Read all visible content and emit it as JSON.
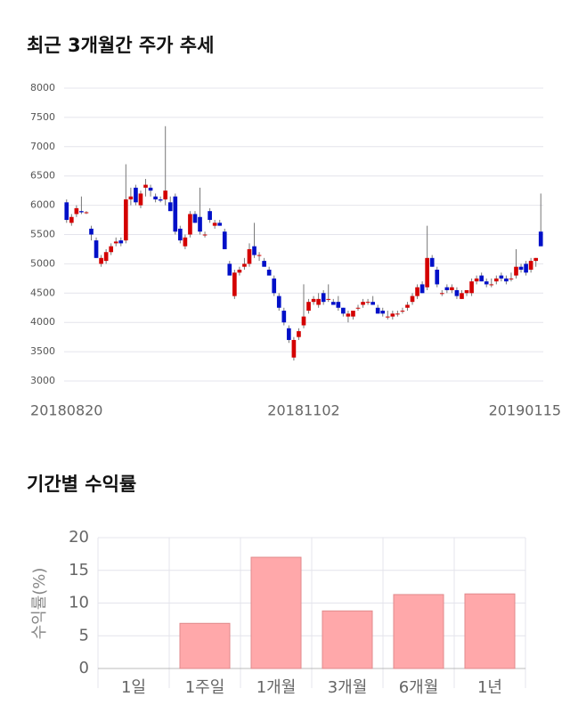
{
  "chart_data": [
    {
      "type": "candlestick",
      "title": "최근 3개월간 주가 추세",
      "up_color": "#d40000",
      "down_color": "#0010c8",
      "grid": true,
      "ylim": [
        3000,
        8000
      ],
      "yticks": [
        3000,
        3500,
        4000,
        4500,
        5000,
        5500,
        6000,
        6500,
        7000,
        7500,
        8000
      ],
      "categories": [
        "20180820",
        null,
        null,
        null,
        null,
        null,
        null,
        null,
        null,
        null,
        null,
        null,
        null,
        null,
        null,
        null,
        null,
        null,
        null,
        null,
        null,
        null,
        null,
        null,
        null,
        null,
        null,
        null,
        null,
        null,
        null,
        null,
        null,
        null,
        null,
        null,
        null,
        null,
        null,
        null,
        null,
        null,
        null,
        null,
        null,
        null,
        null,
        null,
        "20181102",
        null,
        null,
        null,
        null,
        null,
        null,
        null,
        null,
        null,
        null,
        null,
        null,
        null,
        null,
        null,
        null,
        null,
        null,
        null,
        null,
        null,
        null,
        null,
        null,
        null,
        null,
        null,
        null,
        null,
        null,
        null,
        null,
        null,
        null,
        null,
        null,
        null,
        null,
        null,
        null,
        null,
        null,
        null,
        null,
        null,
        null,
        null,
        "20190115"
      ],
      "open": [
        6050,
        5700,
        5850,
        5900,
        5880,
        5600,
        5400,
        5000,
        5050,
        5200,
        5350,
        5400,
        5400,
        6100,
        6300,
        6000,
        6300,
        6300,
        6150,
        6100,
        6100,
        6050,
        6150,
        5600,
        5300,
        5500,
        5850,
        5800,
        5500,
        5900,
        5650,
        5700,
        5550,
        5000,
        4450,
        4850,
        4950,
        5000,
        5300,
        5150,
        5050,
        4900,
        4750,
        4450,
        4200,
        3900,
        3400,
        3750,
        3950,
        4200,
        4350,
        4300,
        4500,
        4400,
        4350,
        4350,
        4250,
        4100,
        4100,
        4250,
        4300,
        4350,
        4350,
        4250,
        4200,
        4100,
        4100,
        4150,
        4200,
        4250,
        4350,
        4450,
        4650,
        4600,
        5100,
        4900,
        4500,
        4600,
        4550,
        4550,
        4400,
        4500,
        4500,
        4700,
        4800,
        4700,
        4650,
        4700,
        4800,
        4750,
        4750,
        4800,
        4950,
        5000,
        4900,
        5050,
        5550
      ],
      "high": [
        6100,
        5850,
        6000,
        6150,
        5900,
        5650,
        5450,
        5150,
        5250,
        5350,
        5450,
        5450,
        6700,
        6300,
        6350,
        6250,
        6450,
        6350,
        6200,
        6150,
        7350,
        6150,
        6200,
        5650,
        5500,
        5900,
        5900,
        6300,
        5550,
        5950,
        5750,
        5750,
        5600,
        5050,
        4900,
        4950,
        5100,
        5350,
        5700,
        5200,
        5100,
        4950,
        4800,
        4500,
        4250,
        3950,
        3750,
        3900,
        4650,
        4400,
        4450,
        4500,
        4550,
        4650,
        4400,
        4450,
        4250,
        4200,
        4200,
        4300,
        4400,
        4400,
        4450,
        4300,
        4250,
        4200,
        4200,
        4200,
        4250,
        4350,
        4500,
        4650,
        4700,
        5650,
        5150,
        4950,
        4550,
        4650,
        4650,
        4600,
        4550,
        4550,
        4750,
        4800,
        4850,
        4750,
        4750,
        4800,
        4850,
        4800,
        4850,
        5250,
        5000,
        5050,
        5100,
        5100,
        6200
      ],
      "low": [
        5700,
        5650,
        5800,
        5850,
        5850,
        5400,
        5100,
        4950,
        5000,
        5150,
        5300,
        5300,
        5350,
        6000,
        6000,
        5950,
        6150,
        6150,
        6050,
        6050,
        6000,
        5900,
        5500,
        5350,
        5250,
        5450,
        5700,
        5500,
        5450,
        5700,
        5600,
        5650,
        5250,
        4800,
        4400,
        4800,
        4900,
        4950,
        5100,
        5050,
        4950,
        4800,
        4450,
        4200,
        3950,
        3650,
        3350,
        3700,
        3900,
        4150,
        4300,
        4250,
        4300,
        4350,
        4300,
        4200,
        4100,
        4000,
        4050,
        4200,
        4250,
        4300,
        4300,
        4150,
        4100,
        4050,
        4050,
        4100,
        4150,
        4200,
        4300,
        4400,
        4500,
        4550,
        4950,
        4600,
        4450,
        4500,
        4500,
        4400,
        4400,
        4450,
        4450,
        4650,
        4700,
        4600,
        4600,
        4650,
        4700,
        4650,
        4700,
        4750,
        4850,
        4800,
        4850,
        4950,
        5300
      ],
      "close": [
        5750,
        5800,
        5950,
        5880,
        5880,
        5500,
        5100,
        5100,
        5200,
        5300,
        5380,
        5350,
        6100,
        6150,
        6050,
        6200,
        6350,
        6250,
        6100,
        6080,
        6250,
        5900,
        5550,
        5400,
        5450,
        5850,
        5700,
        5550,
        5500,
        5750,
        5700,
        5650,
        5250,
        4800,
        4850,
        4900,
        5000,
        5250,
        5150,
        5150,
        4950,
        4800,
        4500,
        4250,
        4000,
        3700,
        3700,
        3850,
        4100,
        4350,
        4400,
        4400,
        4350,
        4400,
        4300,
        4250,
        4150,
        4150,
        4200,
        4250,
        4350,
        4350,
        4300,
        4150,
        4150,
        4100,
        4150,
        4150,
        4200,
        4300,
        4450,
        4600,
        4500,
        5100,
        4950,
        4650,
        4500,
        4550,
        4600,
        4450,
        4500,
        4550,
        4700,
        4750,
        4700,
        4650,
        4650,
        4750,
        4750,
        4700,
        4750,
        4950,
        4900,
        4850,
        5050,
        5100,
        5300
      ]
    },
    {
      "type": "bar",
      "title": "기간별 수익률",
      "ylabel": "수익률(%)",
      "color": "#ffa8aa",
      "edge_color": "#e08a8c",
      "grid": true,
      "categories": [
        "1일",
        "1주일",
        "1개월",
        "3개월",
        "6개월",
        "1년"
      ],
      "values": [
        0,
        6.9,
        17.0,
        8.8,
        11.3,
        11.4
      ],
      "ylim": [
        0,
        20
      ],
      "yticks": [
        0,
        5,
        10,
        15,
        20
      ]
    }
  ]
}
